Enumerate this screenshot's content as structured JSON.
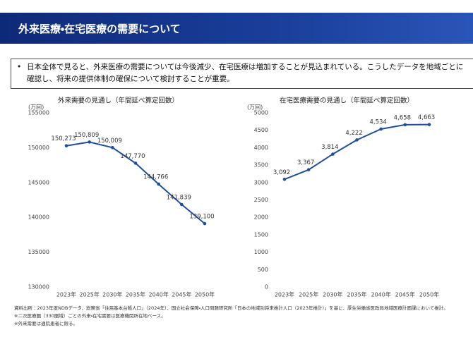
{
  "header": {
    "title": "外来医療・在宅医療の需要について"
  },
  "bullet": {
    "text": "日本全体で見ると、外来医療の需要については今後減少、在宅医療は増加することが見込まれている。こうしたデータを地域ごとに確認し、将来の提供体制の確保について検討することが重要。"
  },
  "chart_data": [
    {
      "type": "line",
      "title": "外来需要の見通し（年間延べ算定回数）",
      "ylabel": "(万回)",
      "categories": [
        "2023年",
        "2025年",
        "2030年",
        "2035年",
        "2040年",
        "2045年",
        "2050年"
      ],
      "values": [
        150273,
        150809,
        150009,
        147770,
        144766,
        141839,
        139100
      ],
      "value_labels": [
        "150,273",
        "150,809",
        "150,009",
        "147,770",
        "144,766",
        "141,839",
        "139,100"
      ],
      "color": "#1f4e9e",
      "ylim": [
        130000,
        155000
      ],
      "yticks": [
        130000,
        135000,
        140000,
        145000,
        150000,
        155000
      ]
    },
    {
      "type": "line",
      "title": "在宅医療需要の見通し（年間延べ算定回数）",
      "ylabel": "(万回)",
      "categories": [
        "2023年",
        "2025年",
        "2030年",
        "2035年",
        "2040年",
        "2045年",
        "2050年"
      ],
      "values": [
        3092,
        3367,
        3814,
        4222,
        4534,
        4658,
        4663
      ],
      "value_labels": [
        "3,092",
        "3,367",
        "3,814",
        "4,222",
        "4,534",
        "4,658",
        "4,663"
      ],
      "color": "#1f4e9e",
      "ylim": [
        0,
        5000
      ],
      "yticks": [
        0,
        500,
        1000,
        1500,
        2000,
        2500,
        3000,
        3500,
        4000,
        4500,
        5000
      ]
    }
  ],
  "footnotes": [
    "資料出所：2023年度NDBデータ、総務省「住民基本台帳人口」（2024年）、国立社会保障・人口問題研究所「日本の地域別将来推計人口（2023年推計）」を基に、厚生労働省医政局地域医療計画課において推計。",
    "※二次医療圏（330圏域）ごとの外来・在宅需要は医療機関所在地ベース。",
    "※外来需要は通院患者に限る。"
  ]
}
